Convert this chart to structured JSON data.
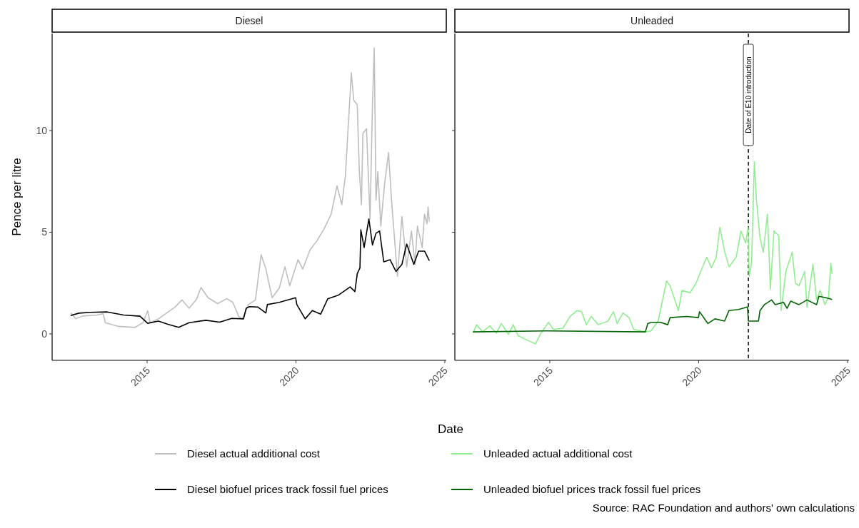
{
  "chart_data": [
    {
      "type": "line",
      "title": "Diesel",
      "xlabel": "Date",
      "ylabel": "Pence per litre",
      "xlim": [
        2011.81,
        2025.05
      ],
      "xticks": [
        2015,
        2020,
        2025
      ],
      "ylim": [
        -1.3,
        14.77
      ],
      "yticks": [
        0,
        5,
        10
      ],
      "grid": false,
      "legend": "bottom",
      "line_style": "solid",
      "marker": "none",
      "annotations": [
        "Source: RAC Foundation and authors' own calculations"
      ],
      "series": [
        {
          "name": "Diesel actual additional cost",
          "color": "#bebebe",
          "x": [
            2012.44,
            2012.6,
            2012.84,
            2013.32,
            2013.52,
            2013.6,
            2014.03,
            2014.59,
            2014.86,
            2015.02,
            2015.1,
            2015.38,
            2015.94,
            2016.17,
            2016.41,
            2016.65,
            2016.81,
            2017.05,
            2017.37,
            2017.68,
            2017.88,
            2018.08,
            2018.2,
            2018.4,
            2018.64,
            2018.83,
            2018.99,
            2019.2,
            2019.44,
            2019.63,
            2019.79,
            2020.07,
            2020.23,
            2020.47,
            2020.71,
            2020.95,
            2021.18,
            2021.38,
            2021.54,
            2021.66,
            2021.86,
            2021.94,
            2022.06,
            2022.13,
            2022.2,
            2022.25,
            2022.37,
            2022.49,
            2022.57,
            2022.63,
            2022.69,
            2022.75,
            2022.85,
            2022.97,
            2023.11,
            2023.21,
            2023.33,
            2023.41,
            2023.56,
            2023.72,
            2023.88,
            2024.0,
            2024.08,
            2024.24,
            2024.32,
            2024.4,
            2024.44,
            2024.48
          ],
          "values": [
            1.03,
            0.74,
            0.88,
            0.93,
            0.99,
            0.55,
            0.37,
            0.32,
            0.55,
            1.14,
            0.55,
            0.74,
            1.32,
            1.67,
            1.26,
            1.67,
            2.28,
            1.78,
            1.49,
            1.73,
            1.55,
            0.85,
            0.74,
            1.44,
            1.67,
            3.89,
            3.19,
            1.78,
            2.25,
            3.3,
            2.37,
            3.65,
            3.19,
            4.12,
            4.59,
            5.18,
            5.88,
            7.28,
            6.35,
            7.75,
            12.84,
            11.5,
            11.26,
            7.98,
            6.35,
            9.86,
            10.09,
            5.65,
            11.26,
            14.07,
            6.58,
            7.98,
            5.3,
            7.28,
            8.92,
            6.58,
            4.35,
            2.83,
            5.77,
            3.3,
            5.06,
            3.42,
            5.3,
            4.25,
            5.89,
            5.42,
            6.24,
            5.53
          ]
        },
        {
          "name": "Diesel biofuel prices track fossil fuel prices",
          "color": "#000000",
          "x": [
            2012.43,
            2012.71,
            2013.1,
            2013.66,
            2014.21,
            2014.76,
            2015.02,
            2015.38,
            2015.7,
            2016.06,
            2016.41,
            2016.97,
            2017.44,
            2017.84,
            2018.24,
            2018.33,
            2018.44,
            2018.72,
            2018.99,
            2019.04,
            2019.44,
            2019.99,
            2020.03,
            2020.31,
            2020.55,
            2020.83,
            2021.07,
            2021.42,
            2021.82,
            2021.98,
            2022.06,
            2022.15,
            2022.18,
            2022.29,
            2022.45,
            2022.57,
            2022.69,
            2022.81,
            2022.95,
            2023.16,
            2023.36,
            2023.56,
            2023.72,
            2023.96,
            2024.12,
            2024.32,
            2024.48
          ],
          "values": [
            0.9,
            1.02,
            1.06,
            1.08,
            0.93,
            0.87,
            0.52,
            0.63,
            0.47,
            0.32,
            0.55,
            0.67,
            0.58,
            0.76,
            0.74,
            1.26,
            1.34,
            1.32,
            1.03,
            1.44,
            1.55,
            1.78,
            1.44,
            0.74,
            1.15,
            0.97,
            1.73,
            1.9,
            2.31,
            2.08,
            2.96,
            3.25,
            5.12,
            4.25,
            5.65,
            4.37,
            4.95,
            5.06,
            3.54,
            3.65,
            3.07,
            3.42,
            4.42,
            3.42,
            4.07,
            4.07,
            3.6
          ]
        }
      ]
    },
    {
      "type": "line",
      "title": "Unleaded",
      "xlim": [
        2011.81,
        2025.05
      ],
      "xticks": [
        2015,
        2020,
        2025
      ],
      "ylim": [
        -1.3,
        14.77
      ],
      "yticks": [
        0,
        5,
        10
      ],
      "tick_labels": "x",
      "grid": false,
      "legend": "bottom",
      "line_style": "solid",
      "marker": "none",
      "ref_lines": [
        {
          "axis": "x",
          "value": 2021.67,
          "label": "Date of E10 introduction",
          "color": "#000000",
          "line_style": "dashed"
        }
      ],
      "series": [
        {
          "name": "Unleaded actual additional cost",
          "color": "#90ee90",
          "x": [
            2012.42,
            2012.54,
            2012.74,
            2012.98,
            2013.21,
            2013.37,
            2013.61,
            2013.77,
            2013.93,
            2014.17,
            2014.52,
            2014.68,
            2014.96,
            2015.12,
            2015.44,
            2015.68,
            2015.92,
            2016.07,
            2016.23,
            2016.39,
            2016.63,
            2016.95,
            2017.14,
            2017.26,
            2017.46,
            2017.66,
            2017.82,
            2018.21,
            2018.4,
            2018.64,
            2018.92,
            2019.04,
            2019.32,
            2019.44,
            2019.71,
            2019.91,
            2020.07,
            2020.27,
            2020.43,
            2020.59,
            2020.71,
            2020.87,
            2021.02,
            2021.26,
            2021.42,
            2021.58,
            2021.66,
            2021.7,
            2021.78,
            2021.87,
            2021.94,
            2022.06,
            2022.17,
            2022.31,
            2022.41,
            2022.53,
            2022.69,
            2022.77,
            2022.93,
            2023.14,
            2023.25,
            2023.37,
            2023.56,
            2023.64,
            2023.84,
            2023.96,
            2024.08,
            2024.24,
            2024.36,
            2024.44,
            2024.48
          ],
          "values": [
            0.04,
            0.45,
            0.1,
            0.39,
            0.04,
            0.51,
            -0.02,
            0.45,
            -0.08,
            -0.26,
            -0.49,
            -0.02,
            0.57,
            0.22,
            0.28,
            0.86,
            1.15,
            1.09,
            0.45,
            0.86,
            0.45,
            0.63,
            1.09,
            0.51,
            1.03,
            0.8,
            0.22,
            0.1,
            0.15,
            0.63,
            2.6,
            2.37,
            1.15,
            2.14,
            2.02,
            2.49,
            3.07,
            3.77,
            3.25,
            3.77,
            5.24,
            4.07,
            3.3,
            3.77,
            5.06,
            4.47,
            5.24,
            2.84,
            3.54,
            8.46,
            6.59,
            4.72,
            4.02,
            5.89,
            2.2,
            5.06,
            4.83,
            1.15,
            3.07,
            4.02,
            2.49,
            2.37,
            3.07,
            1.32,
            3.42,
            1.67,
            2.14,
            1.44,
            1.78,
            3.48,
            2.96
          ]
        },
        {
          "name": "Unleaded biofuel prices track fossil fuel prices",
          "color": "#006400",
          "x": [
            2012.42,
            2014.96,
            2018.21,
            2018.29,
            2018.41,
            2018.72,
            2018.96,
            2019.04,
            2019.59,
            2019.99,
            2020.03,
            2020.31,
            2020.55,
            2020.87,
            2021.02,
            2021.34,
            2021.64,
            2021.67,
            2022.01,
            2022.06,
            2022.21,
            2022.45,
            2022.57,
            2022.85,
            2022.97,
            2023.09,
            2023.37,
            2023.64,
            2023.96,
            2024.04,
            2024.28,
            2024.48
          ],
          "values": [
            0.1,
            0.15,
            0.1,
            0.51,
            0.57,
            0.57,
            0.45,
            0.8,
            0.86,
            0.8,
            1.09,
            0.51,
            0.74,
            0.63,
            1.15,
            1.2,
            1.32,
            0.63,
            0.63,
            1.15,
            1.44,
            1.67,
            1.44,
            1.55,
            1.26,
            1.61,
            1.44,
            1.67,
            1.44,
            1.85,
            1.78,
            1.69
          ]
        }
      ]
    }
  ]
}
